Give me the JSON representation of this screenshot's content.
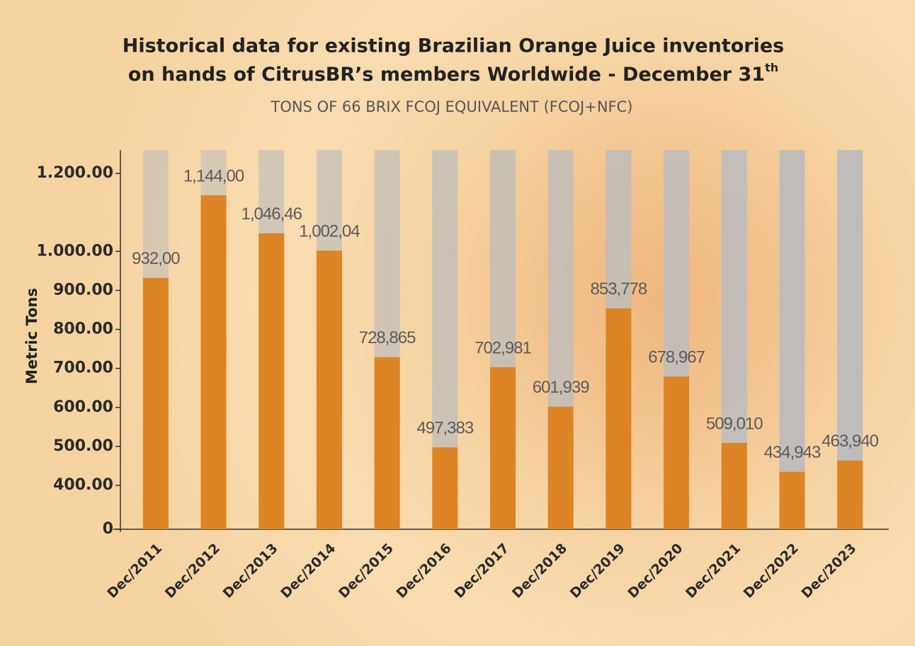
{
  "chart_data": {
    "type": "bar",
    "title": [
      "Historical data for existing Brazilian Orange Juice inventories",
      "on hands of CitrusBR’s members Worldwide - December 31"
    ],
    "title_superscript": "th",
    "subtitle": "TONS OF 66 BRIX FCOJ EQUIVALENT (FCOJ+NFC)",
    "y_label": "Metric Tons",
    "categories": [
      "Dec/2011",
      "Dec/2012",
      "Dec/2013",
      "Dec/2014",
      "Dec/2015",
      "Dec/2016",
      "Dec/2017",
      "Dec/2018",
      "Dec/2019",
      "Dec/2020",
      "Dec/2021",
      "Dec/2022",
      "Dec/2023"
    ],
    "values": [
      932,
      1144,
      1046.46,
      1002.04,
      728.865,
      497.383,
      702.981,
      601.939,
      853.778,
      678.967,
      509.01,
      434.943,
      463.94
    ],
    "value_labels": [
      "932,00",
      "1,144,00",
      "1,046,46",
      "1,002,04",
      "728,865",
      "497,383",
      "702,981",
      "601,939",
      "853,778",
      "678,967",
      "509,010",
      "434,943",
      "463,940"
    ],
    "color": "#dd8424",
    "background_bar_color": "#bcbcbc",
    "axis_break": true,
    "ylim": [
      0,
      1260
    ],
    "yticks": [
      0,
      {
        "value": 400,
        "label": "400.00"
      },
      {
        "value": 500,
        "label": "500.00"
      },
      {
        "value": 600,
        "label": "600.00"
      },
      {
        "value": 700,
        "label": "700.00"
      },
      {
        "value": 800,
        "label": "800.00"
      },
      {
        "value": 900,
        "label": "900.00"
      },
      {
        "value": 1000,
        "label": "1.000.00"
      },
      {
        "value": 1200,
        "label": "1.200.00"
      }
    ],
    "grid": false
  }
}
